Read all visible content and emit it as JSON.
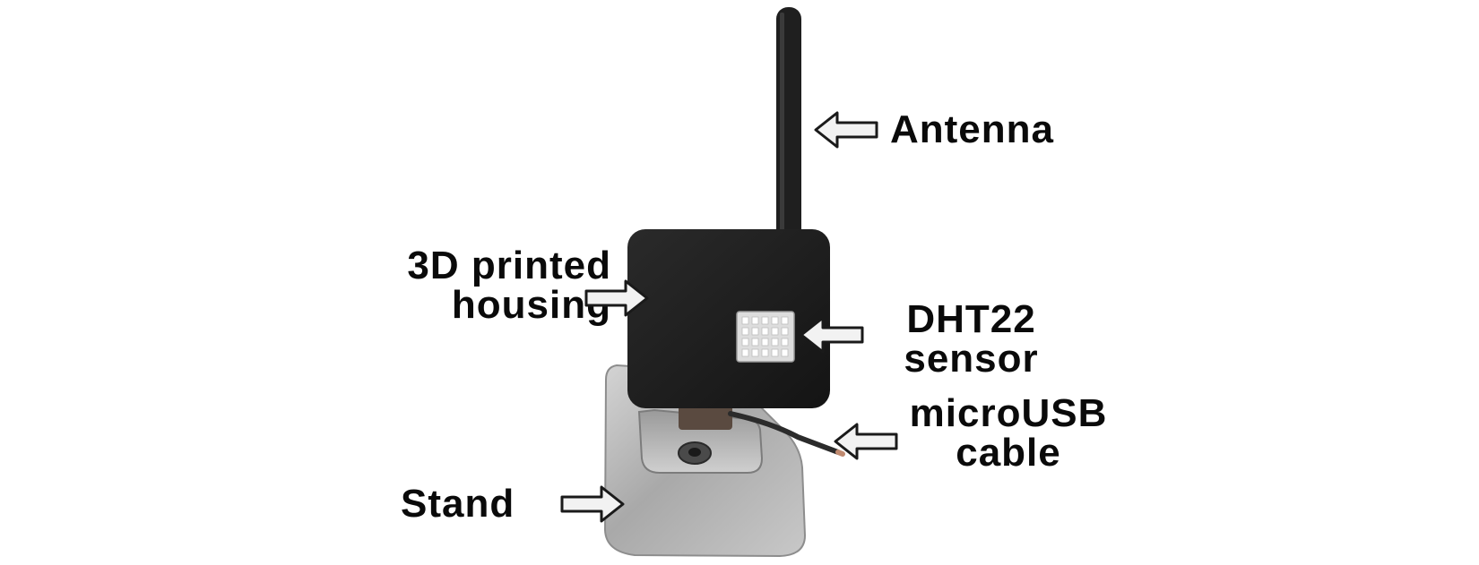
{
  "labels": {
    "antenna": "Antenna",
    "housing": [
      "3D printed",
      "housing"
    ],
    "sensor": [
      "DHT22",
      "sensor"
    ],
    "cable": [
      "microUSB",
      "cable"
    ],
    "stand": "Stand"
  },
  "colors": {
    "text": "#0a0a0a",
    "arrow_fill": "#f2f2f2",
    "arrow_stroke": "#1a1a1a",
    "housing": "#1e1e1e",
    "antenna": "#222222",
    "stand": "#b7b7b7",
    "sensor_grille": "#dcdcdc"
  }
}
